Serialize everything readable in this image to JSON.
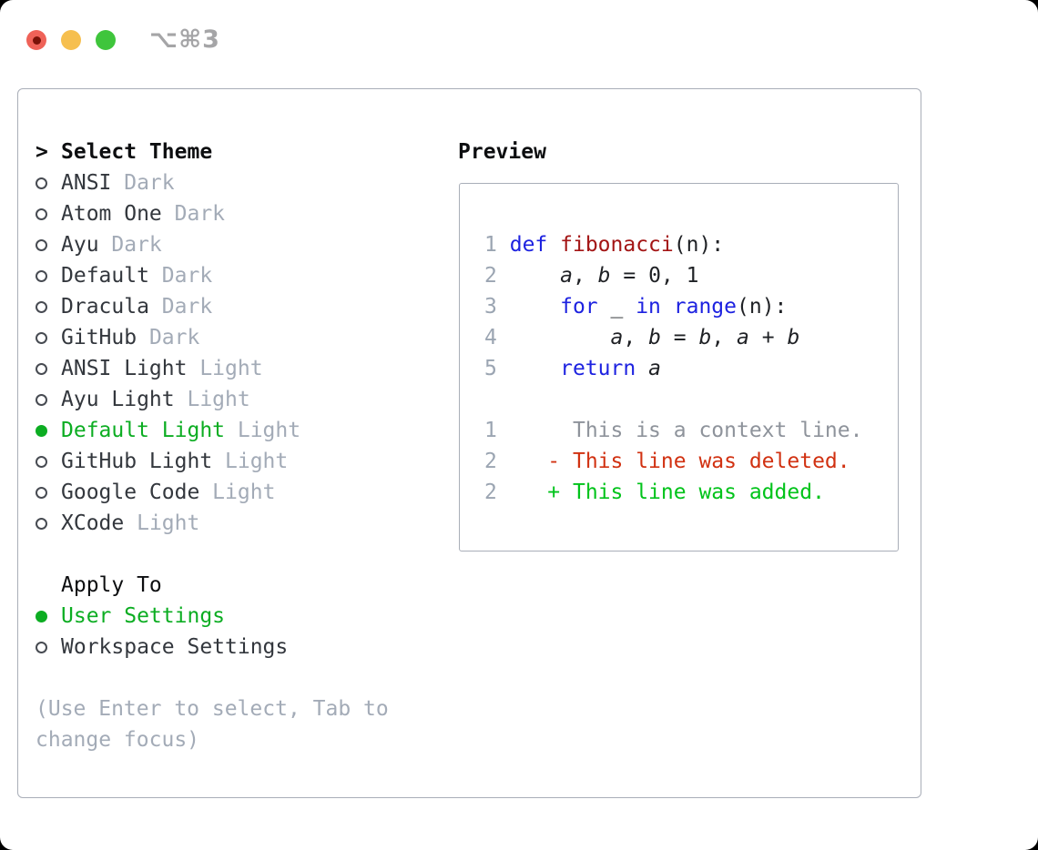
{
  "titlebar": {
    "shortcut": "⌥⌘3"
  },
  "colors": {
    "traffic_red": "#ef6258",
    "traffic_yellow": "#f6bf4f",
    "traffic_green": "#3fc53c",
    "traffic_dot": "#7a1208",
    "shortcut_gray": "#a5a5a7",
    "border_gray": "#a9aeb8",
    "text_black": "#0d0e10",
    "item_dark": "#33373d",
    "muted_gray": "#a3abb7",
    "circle_gray": "#474b52",
    "select_green": "#0cad22",
    "code_black": "#1f2125",
    "line_number_gray": "#9ba5b2",
    "keyword_blue": "#1d22e0",
    "function_red": "#a31515",
    "context_gray": "#8e939b",
    "deleted_red": "#d13111",
    "added_green": "#00c31a"
  },
  "theme_list": {
    "prompt": ">",
    "header": "Select Theme",
    "items": [
      {
        "name": "ANSI",
        "variant": "Dark",
        "selected": false
      },
      {
        "name": "Atom One",
        "variant": "Dark",
        "selected": false
      },
      {
        "name": "Ayu",
        "variant": "Dark",
        "selected": false
      },
      {
        "name": "Default",
        "variant": "Dark",
        "selected": false
      },
      {
        "name": "Dracula",
        "variant": "Dark",
        "selected": false
      },
      {
        "name": "GitHub",
        "variant": "Dark",
        "selected": false
      },
      {
        "name": "ANSI Light",
        "variant": "Light",
        "selected": false
      },
      {
        "name": "Ayu Light",
        "variant": "Light",
        "selected": false
      },
      {
        "name": "Default Light",
        "variant": "Light",
        "selected": true
      },
      {
        "name": "GitHub Light",
        "variant": "Light",
        "selected": false
      },
      {
        "name": "Google Code",
        "variant": "Light",
        "selected": false
      },
      {
        "name": "XCode",
        "variant": "Light",
        "selected": false
      }
    ]
  },
  "apply_to": {
    "header": "Apply To",
    "options": [
      {
        "label": "User Settings",
        "selected": true
      },
      {
        "label": "Workspace Settings",
        "selected": false
      }
    ]
  },
  "hint_lines": [
    "(Use Enter to select, Tab to",
    "change focus)"
  ],
  "preview": {
    "header": "Preview",
    "code_lines": [
      {
        "num": "1",
        "segments": [
          {
            "t": "def",
            "c": "kw"
          },
          {
            "t": " "
          },
          {
            "t": "fibonacci",
            "c": "fn"
          },
          {
            "t": "(n):"
          }
        ]
      },
      {
        "num": "2",
        "segments": [
          {
            "t": "    "
          },
          {
            "t": "a",
            "c": "v"
          },
          {
            "t": ", "
          },
          {
            "t": "b",
            "c": "v"
          },
          {
            "t": " = 0, 1"
          }
        ]
      },
      {
        "num": "3",
        "segments": [
          {
            "t": "    "
          },
          {
            "t": "for",
            "c": "kw"
          },
          {
            "t": " _ "
          },
          {
            "t": "in",
            "c": "kw"
          },
          {
            "t": " "
          },
          {
            "t": "range",
            "c": "kw"
          },
          {
            "t": "(n):"
          }
        ]
      },
      {
        "num": "4",
        "segments": [
          {
            "t": "        "
          },
          {
            "t": "a",
            "c": "v"
          },
          {
            "t": ", "
          },
          {
            "t": "b",
            "c": "v"
          },
          {
            "t": " = "
          },
          {
            "t": "b",
            "c": "v"
          },
          {
            "t": ", "
          },
          {
            "t": "a",
            "c": "v"
          },
          {
            "t": " + "
          },
          {
            "t": "b",
            "c": "v"
          }
        ]
      },
      {
        "num": "5",
        "segments": [
          {
            "t": "    "
          },
          {
            "t": "return",
            "c": "kw"
          },
          {
            "t": " "
          },
          {
            "t": "a",
            "c": "v"
          }
        ]
      }
    ],
    "diff_lines": [
      {
        "num": "1",
        "marker": " ",
        "text": "This is a context line.",
        "kind": "context"
      },
      {
        "num": "2",
        "marker": "-",
        "text": "This line was deleted.",
        "kind": "deleted"
      },
      {
        "num": "2",
        "marker": "+",
        "text": "This line was added.",
        "kind": "added"
      }
    ]
  }
}
